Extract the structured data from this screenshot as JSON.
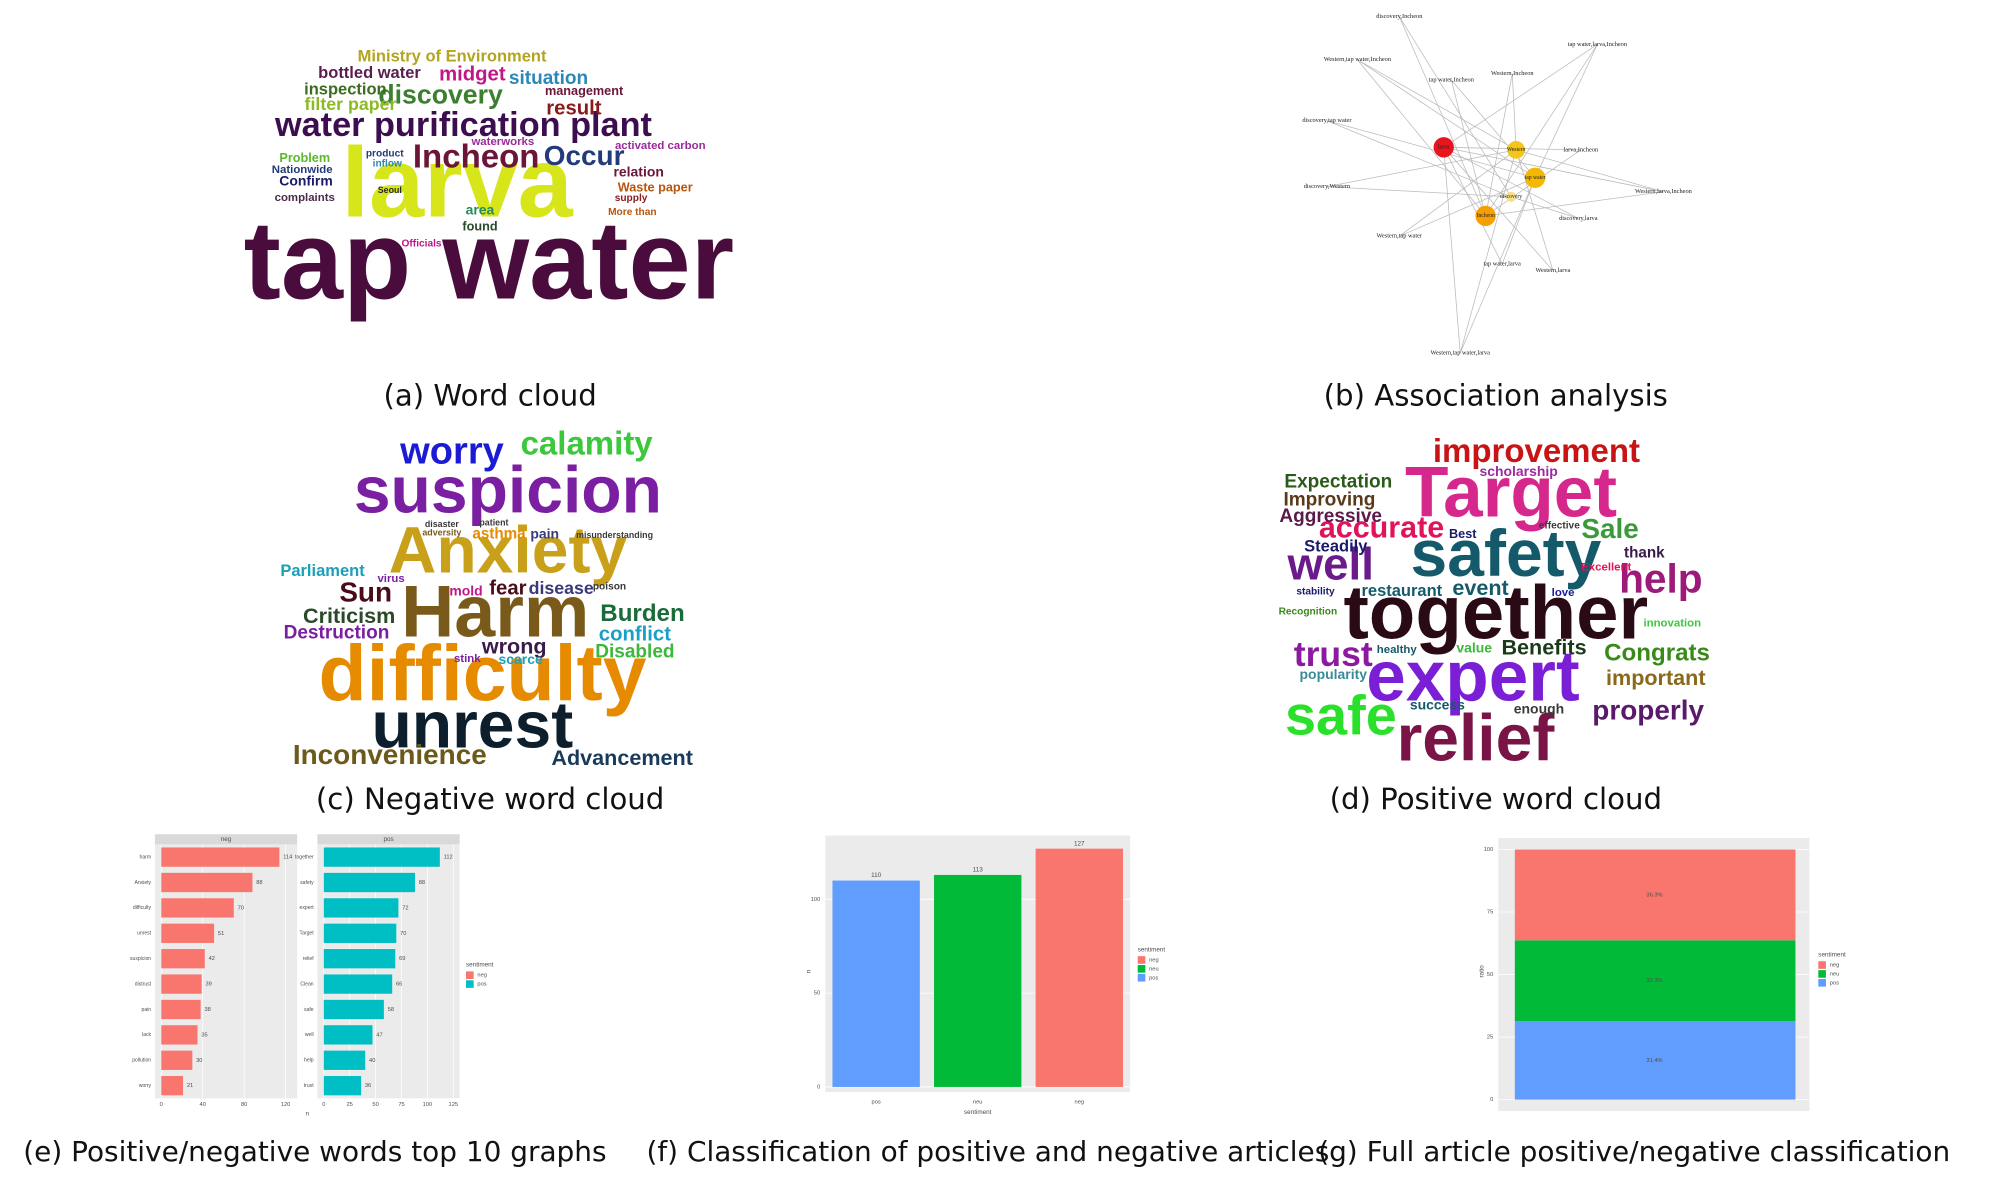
{
  "chart_data": [
    {
      "type": "wordcloud",
      "caption": "(a) Word cloud",
      "words": [
        "tap water",
        "larva",
        "water purification plant",
        "Incheon",
        "Occur",
        "discovery",
        "Ministry of Environment",
        "bottled water",
        "midget",
        "situation",
        "inspection",
        "management",
        "filter paper",
        "result",
        "Problem",
        "Nationwide",
        "Confirm",
        "complaints",
        "relation",
        "activated carbon",
        "Waste paper",
        "area",
        "found",
        "Officials",
        "waterworks",
        "product",
        "inflow",
        "supply",
        "More than",
        "Seoul"
      ],
      "colors": [
        "#4a0c3c",
        "#d7e51b",
        "#3d0e4f",
        "#6b1538",
        "#233b7a",
        "#3b7f2f",
        "#b5a41f",
        "#5a1d4e",
        "#c0168a",
        "#2b88b8",
        "#3b6d1c",
        "#6b1538",
        "#8bbb21",
        "#8b1a1a",
        "#5cb82b",
        "#233b7a",
        "#1a1a6b",
        "#4a2a4a",
        "#6b1538",
        "#9b2a9b",
        "#b8560b",
        "#2a8a5a",
        "#2a4a2a",
        "#c0168a",
        "#9b2a9b",
        "#233b7a",
        "#2b88b8",
        "#8b1a1a",
        "#b8560b",
        "#2a2a2a"
      ]
    },
    {
      "type": "network",
      "caption": "(b) Association analysis",
      "nodes": [
        {
          "label": "larva",
          "color": "#e8141e"
        },
        {
          "label": "Western",
          "color": "#f5c518"
        },
        {
          "label": "tap water",
          "color": "#f5b800"
        },
        {
          "label": "discovery",
          "color": "#f5e08a"
        },
        {
          "label": "Incheon",
          "color": "#f5a000"
        }
      ],
      "labels": [
        "discovery,Incheon",
        "Western,tap water,Incheon",
        "tap water,larva,Incheon",
        "Western,Incheon",
        "tap water,Incheon",
        "discovery,tap water",
        "larva,Incheon",
        "discovery,Western",
        "Western,larva,Incheon",
        "discovery,larva",
        "Western,tap water",
        "tap water,larva",
        "Western,larva",
        "Western,tap water,larva"
      ]
    },
    {
      "type": "wordcloud",
      "caption": "(c) Negative word cloud",
      "words": [
        "suspicion",
        "Anxiety",
        "Harm",
        "difficulty",
        "unrest",
        "worry",
        "calamity",
        "Inconvenience",
        "Advancement",
        "Burden",
        "conflict",
        "Disabled",
        "Sun",
        "Criticism",
        "Destruction",
        "Parliament",
        "fear",
        "disease",
        "wrong",
        "scarce",
        "asthma",
        "pain",
        "mold",
        "virus",
        "stink",
        "poison",
        "disaster",
        "patient",
        "adversity",
        "misunderstanding"
      ],
      "colors": [
        "#7b1fa2",
        "#c9a01a",
        "#7a5a1a",
        "#e68a00",
        "#0d1f2d",
        "#1b1bd6",
        "#3cc83c",
        "#6b5a1a",
        "#1a3a5a",
        "#1a6b3a",
        "#1aa0c8",
        "#3cb83c",
        "#4a0c1a",
        "#2a4a2a",
        "#7b1fa2",
        "#1aa0b8",
        "#4a0c1a",
        "#3a3a7a",
        "#3a1a4a",
        "#1aa0b8",
        "#e68a00",
        "#3a3a7a",
        "#c0168a",
        "#7b1fa2",
        "#7b1fa2",
        "#3a3a3a",
        "#3a3a3a",
        "#3a3a3a",
        "#7a5a1a",
        "#3a3a3a"
      ]
    },
    {
      "type": "wordcloud",
      "caption": "(d) Positive word cloud",
      "words": [
        "Target",
        "safety",
        "together",
        "expert",
        "relief",
        "safe",
        "improvement",
        "well",
        "help",
        "trust",
        "Sale",
        "accurate",
        "Expectation",
        "Improving",
        "Aggressive",
        "Steadily",
        "scholarship",
        "restaurant",
        "event",
        "Benefits",
        "Congrats",
        "important",
        "properly",
        "popularity",
        "success",
        "enough",
        "thank",
        "Excellent",
        "innovation",
        "healthy",
        "value",
        "Best",
        "effective",
        "love",
        "stability",
        "Recognition"
      ],
      "colors": [
        "#d6288c",
        "#145a6b",
        "#2a0a14",
        "#7a1fd6",
        "#7a1446",
        "#2ae02a",
        "#c81414",
        "#6b1a8b",
        "#9b1a7a",
        "#8b1aa0",
        "#3a9a3a",
        "#e0145a",
        "#2a5a1a",
        "#5a3a1a",
        "#5a1a4a",
        "#1a1a6b",
        "#9b2aa0",
        "#145a6b",
        "#145a6b",
        "#1a3a1a",
        "#3a8a1a",
        "#8a6a1a",
        "#5a1a6b",
        "#3a8a9a",
        "#145a6b",
        "#3a3a3a",
        "#3a1a4a",
        "#e0145a",
        "#3cc83c",
        "#145a6b",
        "#3cb83c",
        "#1a1a6b",
        "#3a3a3a",
        "#1a1a9b",
        "#1a1a6b",
        "#3a8a1a"
      ]
    },
    {
      "type": "faceted_bar",
      "caption": "(e) Positive/negative words top 10 graphs",
      "x_label": "n",
      "legend_title": "sentiment",
      "facets": [
        {
          "name": "neg",
          "color": "#F8766D",
          "categories": [
            "harm",
            "Anxiety",
            "difficulty",
            "unrest",
            "suspicion",
            "distrust",
            "pain",
            "lack",
            "pollution",
            "worry"
          ],
          "values": [
            114,
            88,
            70,
            51,
            42,
            39,
            38,
            35,
            30,
            21
          ],
          "xlim": [
            0,
            125
          ],
          "xticks": [
            0,
            40,
            80,
            120
          ]
        },
        {
          "name": "pos",
          "color": "#00BFC4",
          "categories": [
            "together",
            "safety",
            "expert",
            "Target",
            "relief",
            "Clean",
            "safe",
            "well",
            "help",
            "trust"
          ],
          "values": [
            112,
            88,
            72,
            70,
            69,
            66,
            58,
            47,
            40,
            36
          ],
          "xlim": [
            0,
            125
          ],
          "xticks": [
            0,
            25,
            50,
            75,
            100,
            125
          ]
        }
      ]
    },
    {
      "type": "bar",
      "caption": "(f) Classification of positive and negative articles",
      "x_label": "sentiment",
      "y_label": "n",
      "legend_title": "sentiment",
      "categories": [
        "pos",
        "neu",
        "neg"
      ],
      "values": [
        110,
        113,
        127
      ],
      "colors": [
        "#619CFF",
        "#00BA38",
        "#F8766D"
      ],
      "ylim": [
        0,
        134
      ],
      "yticks": [
        0,
        50,
        100
      ],
      "legend": [
        {
          "name": "neg",
          "color": "#F8766D"
        },
        {
          "name": "neu",
          "color": "#00BA38"
        },
        {
          "name": "pos",
          "color": "#619CFF"
        }
      ]
    },
    {
      "type": "stacked_bar",
      "caption": "(g) Full article positive/negative classification",
      "y_label": "ratio",
      "legend_title": "sentiment",
      "ylim": [
        0,
        100
      ],
      "yticks": [
        0,
        25,
        50,
        75,
        100
      ],
      "series": [
        {
          "name": "pos",
          "color": "#619CFF",
          "values": [
            31.4
          ],
          "value_labels": [
            "31.4%"
          ]
        },
        {
          "name": "neu",
          "color": "#00BA38",
          "values": [
            32.3
          ],
          "value_labels": [
            "32.3%"
          ]
        },
        {
          "name": "neg",
          "color": "#F8766D",
          "values": [
            36.3
          ],
          "value_labels": [
            "36.3%"
          ]
        }
      ]
    }
  ]
}
